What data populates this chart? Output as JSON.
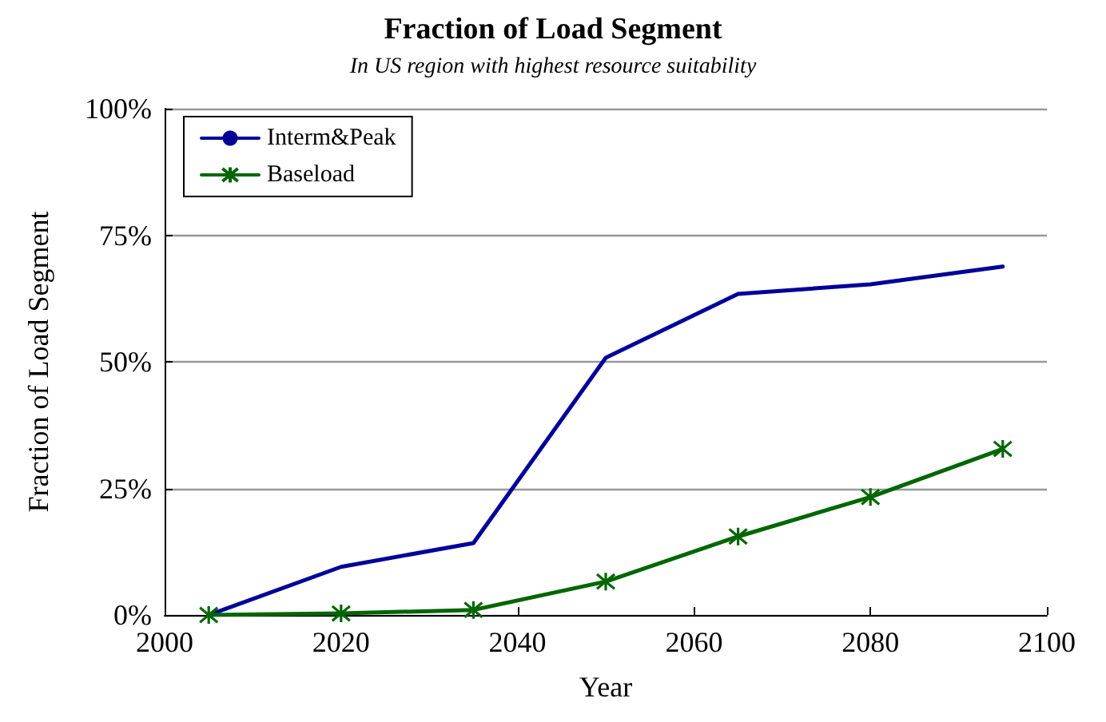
{
  "chart_data": {
    "type": "line",
    "title": "Fraction of Load Segment",
    "subtitle": "In US region with highest resource suitability",
    "xlabel": "Year",
    "ylabel": "Fraction of Load Segment",
    "x": [
      2005,
      2020,
      2035,
      2050,
      2065,
      2080,
      2095
    ],
    "series": [
      {
        "name": "Interm&Peak",
        "color": "#000099",
        "marker": "none",
        "values": [
          0,
          9.5,
          14.2,
          50.8,
          63.4,
          65.3,
          68.8
        ]
      },
      {
        "name": "Baseload",
        "color": "#006600",
        "marker": "cross",
        "values": [
          0,
          0.3,
          1,
          6.6,
          15.5,
          23.3,
          32.8
        ]
      }
    ],
    "xlim": [
      2000,
      2100
    ],
    "xticks": [
      2000,
      2020,
      2040,
      2060,
      2080,
      2100
    ],
    "ylim": [
      0,
      100
    ],
    "yticks": [
      {
        "value": 0,
        "label": "0%"
      },
      {
        "value": 25,
        "label": "25%"
      },
      {
        "value": 50,
        "label": "50%"
      },
      {
        "value": 75,
        "label": "75%"
      },
      {
        "value": 100,
        "label": "100%"
      }
    ],
    "grid": "y",
    "legend": "top left",
    "line_style": "solid"
  }
}
